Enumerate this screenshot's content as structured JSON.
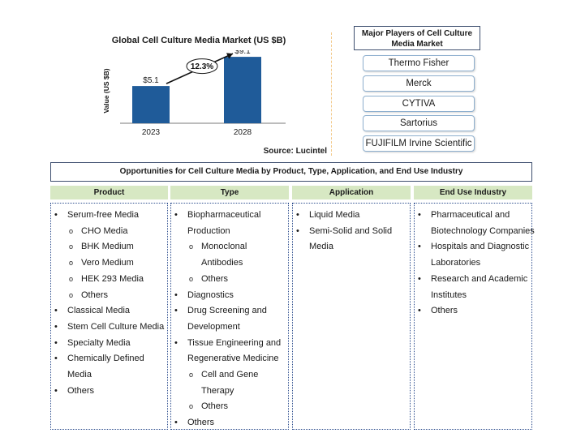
{
  "chart_data": {
    "type": "bar",
    "title": "Global  Cell  Culture  Media  Market  (US $B)",
    "ylabel": "Value (US $B)",
    "xlabel": "",
    "categories": [
      "2023",
      "2028"
    ],
    "values": [
      5.1,
      9.1
    ],
    "value_labels": [
      "$5.1",
      "$9.1"
    ],
    "annotation": "12.3%",
    "bar_color": "#1f5b99",
    "ylim": [
      0,
      10
    ],
    "grid": false
  },
  "source": "Source: Lucintel",
  "players": {
    "title": "Major Players of Cell Culture Media Market",
    "items": [
      "Thermo Fisher",
      "Merck",
      "CYTIVA",
      "Sartorius",
      "FUJIFILM Irvine Scientific"
    ]
  },
  "opportunities": {
    "banner": "Opportunities for Cell Culture Media by Product, Type, Application, and End Use Industry",
    "header_color": "#d7e8c3",
    "columns": [
      {
        "header": "Product",
        "items": [
          {
            "text": "Serum-free Media",
            "sub": [
              "CHO Media",
              "BHK Medium",
              "Vero Medium",
              "HEK 293 Media",
              "Others"
            ]
          },
          {
            "text": "Classical Media"
          },
          {
            "text": "Stem Cell Culture Media"
          },
          {
            "text": "Specialty Media"
          },
          {
            "text": "Chemically Defined Media"
          },
          {
            "text": "Others"
          }
        ]
      },
      {
        "header": "Type",
        "items": [
          {
            "text": "Biopharmaceutical Production",
            "sub": [
              "Monoclonal Antibodies",
              "Others"
            ]
          },
          {
            "text": "Diagnostics"
          },
          {
            "text": "Drug Screening and Development"
          },
          {
            "text": "Tissue Engineering and Regenerative Medicine",
            "sub": [
              "Cell and Gene Therapy",
              "Others"
            ]
          },
          {
            "text": "Others"
          }
        ]
      },
      {
        "header": "Application",
        "items": [
          {
            "text": "Liquid Media"
          },
          {
            "text": "Semi-Solid and Solid Media"
          }
        ]
      },
      {
        "header": "End Use Industry",
        "items": [
          {
            "text": "Pharmaceutical and Biotechnology Companies"
          },
          {
            "text": "Hospitals and Diagnostic Laboratories"
          },
          {
            "text": "Research and Academic Institutes"
          },
          {
            "text": "Others"
          }
        ]
      }
    ]
  }
}
